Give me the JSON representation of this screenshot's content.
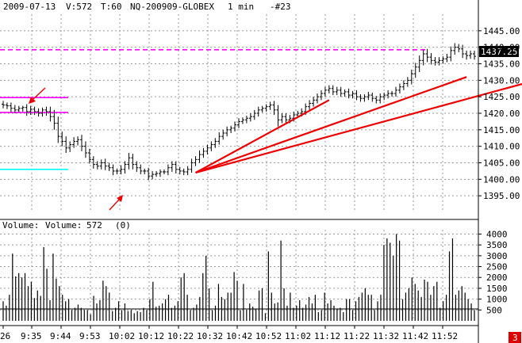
{
  "header": {
    "date": "2009-07-13",
    "volume_readout": "V:572",
    "period": "T:60",
    "symbol": "NQ-200909-GLOBEX",
    "interval": "1 min",
    "bar_number": "-#23"
  },
  "price_badge": {
    "value": "1437.25",
    "color": "#000000"
  },
  "volume_header": {
    "title": "Volume:",
    "name": "Volume:",
    "value": "572",
    "extra": "(0)"
  },
  "corner_badge": {
    "value": "3",
    "color": "#dd0000"
  },
  "colors": {
    "bars": "#000000",
    "grid": "#9a9a9a",
    "resistance": "#ff00ff",
    "support": "#00ffff",
    "trendlines": "#ee0000",
    "arrows": "#ee0000"
  },
  "chart_data": [
    {
      "type": "ohlc",
      "title": "",
      "ylim": [
        1390,
        1450
      ],
      "y_ticks": [
        1395,
        1400,
        1405,
        1410,
        1415,
        1420,
        1425,
        1430,
        1435,
        1440,
        1445
      ],
      "x_ticks": [
        "26",
        "9:35",
        "9:44",
        "9:53",
        "10:02",
        "10:12",
        "10:22",
        "10:32",
        "10:42",
        "10:52",
        "11:02",
        "11:12",
        "11:22",
        "11:32",
        "11:42",
        "11:52"
      ],
      "grid": true,
      "close": [
        1422.5,
        1422.25,
        1421.5,
        1421,
        1421.5,
        1421.75,
        1420.5,
        1421.25,
        1420.5,
        1420,
        1421,
        1420.5,
        1419,
        1417,
        1413,
        1411.5,
        1409.5,
        1410.5,
        1411.5,
        1412,
        1410,
        1408,
        1406,
        1404.5,
        1404,
        1405,
        1404,
        1403.5,
        1402.5,
        1402.5,
        1403,
        1404.5,
        1406.5,
        1404.5,
        1403.5,
        1402.5,
        1402.5,
        1401,
        1401.5,
        1401.75,
        1402.25,
        1402.25,
        1403.5,
        1404.5,
        1403,
        1402.5,
        1402.25,
        1403,
        1405,
        1406,
        1407.5,
        1408.5,
        1409.5,
        1410.5,
        1411.5,
        1413,
        1414,
        1415,
        1415.5,
        1416.5,
        1417.5,
        1418,
        1418.5,
        1419,
        1420,
        1421,
        1421.5,
        1422,
        1422.5,
        1421,
        1418,
        1419,
        1418,
        1418.5,
        1419.5,
        1420,
        1420.5,
        1422,
        1423,
        1424,
        1425,
        1426,
        1427,
        1427.5,
        1426.5,
        1427,
        1426,
        1426.5,
        1425.5,
        1426,
        1425,
        1424.5,
        1425,
        1425.5,
        1424.5,
        1424,
        1425,
        1425.5,
        1426,
        1426,
        1427,
        1428,
        1429,
        1430,
        1432,
        1434,
        1436,
        1438,
        1437,
        1436,
        1435.5,
        1436,
        1436.5,
        1437,
        1439,
        1440,
        1439.5,
        1438,
        1437.5,
        1438,
        1437.25
      ],
      "high_offset": [
        1,
        0.75,
        1,
        1,
        0.75,
        0.5,
        1,
        1,
        0.75,
        1,
        0.75,
        1,
        1.5,
        2,
        2,
        1.5,
        1.5,
        1,
        1.25,
        1,
        1.5,
        1.5,
        1.25,
        1,
        1,
        1,
        1.25,
        1,
        1,
        0.75,
        1.25,
        1,
        1.5,
        1.25,
        1,
        1,
        0.75,
        1,
        1,
        0.75,
        0.75,
        0.75,
        1,
        1,
        1,
        0.75,
        0.75,
        1,
        1.25,
        1,
        1.25,
        1,
        1,
        1,
        1,
        1.25,
        1,
        1,
        0.75,
        1,
        1,
        0.75,
        0.75,
        1,
        1,
        1,
        0.75,
        0.75,
        1,
        1.25,
        1.5,
        1,
        1,
        1,
        1,
        0.75,
        1,
        1,
        1,
        1,
        1,
        1,
        1,
        1,
        1,
        1,
        1,
        0.75,
        1,
        0.75,
        1,
        0.75,
        0.75,
        1,
        0.75,
        0.75,
        1,
        0.75,
        1,
        0.75,
        1,
        1,
        1,
        1,
        1.25,
        1.25,
        1.5,
        1.25,
        1.5,
        1.25,
        1,
        1,
        0.75,
        1,
        1.25,
        1.25,
        1,
        1.25,
        1,
        1,
        1,
        1
      ],
      "low_offset": [
        1,
        1,
        1.25,
        1,
        0.75,
        1,
        1.25,
        1,
        1,
        1,
        1,
        1.25,
        1.5,
        2,
        2,
        1.5,
        1.5,
        1.25,
        1,
        1.25,
        1.5,
        1.5,
        1.25,
        1.25,
        1,
        1,
        1.25,
        1,
        1.25,
        1,
        1,
        1.25,
        1.5,
        1.5,
        1.25,
        1,
        1,
        1.25,
        1,
        0.75,
        1,
        0.75,
        1,
        1.25,
        1.25,
        1,
        1,
        1,
        1,
        1,
        1,
        1,
        1,
        1,
        1,
        1,
        1,
        1,
        1,
        1,
        1,
        0.75,
        1,
        1,
        1,
        1,
        0.75,
        1,
        1,
        1.5,
        2,
        1,
        1,
        1,
        1,
        1,
        1,
        1,
        1,
        1,
        1,
        1,
        1,
        1,
        1,
        1,
        1,
        1,
        1,
        1,
        1,
        1,
        1,
        1,
        1,
        1,
        1,
        1,
        1,
        1,
        1,
        1,
        1,
        1,
        1.25,
        1.25,
        1.5,
        1.5,
        1.5,
        1.25,
        1,
        1,
        1,
        1,
        1.25,
        1.25,
        1,
        1.25,
        1.25,
        1,
        1,
        1,
        1
      ],
      "horizontal_lines": [
        {
          "price": 1439.25,
          "style": "dashed",
          "color": "#ff00ff",
          "span": "full"
        },
        {
          "price": 1424.75,
          "style": "solid",
          "color": "#ff00ff",
          "span": "left"
        },
        {
          "price": 1420.25,
          "style": "solid",
          "color": "#ff00ff",
          "span": "left"
        },
        {
          "price": 1403,
          "style": "solid",
          "color": "#00ffff",
          "span": "left"
        }
      ],
      "trendlines": [
        {
          "from_bar": 49,
          "from_price": 1402,
          "to_bar": 83,
          "to_price": 1424
        },
        {
          "from_bar": 49,
          "from_price": 1402,
          "to_bar": 118,
          "to_price": 1431
        },
        {
          "from_bar": 49,
          "from_price": 1402,
          "to_bar": 148,
          "to_price": 1434
        }
      ]
    },
    {
      "type": "bar",
      "title": "",
      "ylim": [
        0,
        4200
      ],
      "y_ticks": [
        500,
        1000,
        1500,
        2000,
        2500,
        3000,
        3500,
        4000
      ],
      "baseline": 550,
      "values": [
        900,
        700,
        1200,
        3100,
        2050,
        2200,
        2000,
        2200,
        1600,
        1800,
        1050,
        1400,
        1150,
        3400,
        2400,
        950,
        3100,
        1950,
        1600,
        1200,
        900,
        1000,
        500,
        600,
        750,
        600,
        500,
        500,
        300,
        1150,
        800,
        950,
        1850,
        1600,
        1300,
        450,
        600,
        900,
        500,
        800,
        450,
        500,
        350,
        450,
        400,
        600,
        500,
        1000,
        1800,
        650,
        700,
        800,
        1000,
        1200,
        600,
        700,
        900,
        2000,
        2200,
        1200,
        500,
        600,
        750,
        1100,
        2200,
        3000,
        1500,
        500,
        700,
        1700,
        1100,
        1000,
        1300,
        1300,
        2250,
        1850,
        500,
        1700,
        500,
        800,
        650,
        550,
        1400,
        1500,
        350,
        3200,
        1300,
        800,
        850,
        3700,
        1500,
        700,
        1300,
        600,
        700,
        950,
        600,
        750,
        1100,
        800,
        1200,
        400,
        500,
        1300,
        800,
        950,
        700,
        550,
        600,
        400,
        1000,
        1000,
        500,
        900,
        1100,
        1300,
        1500,
        1200,
        1200,
        500,
        900,
        1200,
        3500,
        3800,
        3600,
        3000,
        4000,
        3700,
        1000,
        1300,
        1500,
        2000,
        1700,
        1400,
        1100,
        1900,
        1800,
        1200,
        1600,
        1800,
        600,
        900,
        1200,
        3200,
        3800,
        1200,
        1400,
        1600,
        1300,
        1000,
        800,
        500
      ]
    }
  ]
}
